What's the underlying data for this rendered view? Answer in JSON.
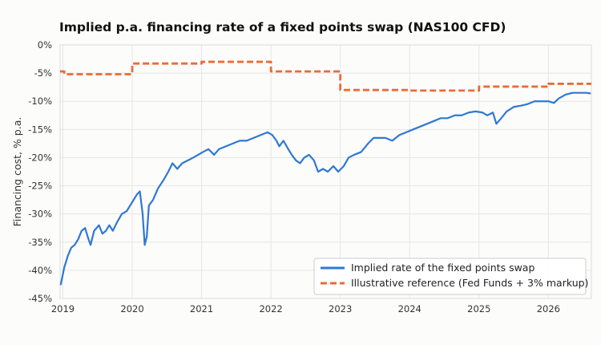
{
  "chart_data": {
    "type": "line",
    "title": "Implied p.a. financing rate of a fixed points swap (NAS100 CFD)",
    "xlabel": "",
    "ylabel": "Financing cost, % p.a.",
    "xlim": [
      2018.96,
      2026.62
    ],
    "ylim": [
      -45,
      0
    ],
    "x_ticks": [
      {
        "value": 2019,
        "label": "2019"
      },
      {
        "value": 2020,
        "label": "2020"
      },
      {
        "value": 2021,
        "label": "2021"
      },
      {
        "value": 2022,
        "label": "2022"
      },
      {
        "value": 2023,
        "label": "2023"
      },
      {
        "value": 2024,
        "label": "2024"
      },
      {
        "value": 2025,
        "label": "2025"
      },
      {
        "value": 2026,
        "label": "2026"
      }
    ],
    "y_ticks": [
      {
        "value": 0,
        "label": "0%"
      },
      {
        "value": -5,
        "label": "-5%"
      },
      {
        "value": -10,
        "label": "-10%"
      },
      {
        "value": -15,
        "label": "-15%"
      },
      {
        "value": -20,
        "label": "-20%"
      },
      {
        "value": -25,
        "label": "-25%"
      },
      {
        "value": -30,
        "label": "-30%"
      },
      {
        "value": -35,
        "label": "-35%"
      },
      {
        "value": -40,
        "label": "-40%"
      },
      {
        "value": -45,
        "label": "-45%"
      }
    ],
    "grid": true,
    "legend_position": "bottom-right",
    "series": [
      {
        "name": "Implied rate of the fixed points swap",
        "color": "#2f78d2",
        "style": "solid",
        "points": [
          [
            2018.97,
            -42.5
          ],
          [
            2019.02,
            -39.5
          ],
          [
            2019.07,
            -37.5
          ],
          [
            2019.12,
            -36.0
          ],
          [
            2019.17,
            -35.5
          ],
          [
            2019.22,
            -34.5
          ],
          [
            2019.27,
            -33.0
          ],
          [
            2019.32,
            -32.5
          ],
          [
            2019.37,
            -34.5
          ],
          [
            2019.4,
            -35.5
          ],
          [
            2019.45,
            -33.0
          ],
          [
            2019.52,
            -32.0
          ],
          [
            2019.57,
            -33.5
          ],
          [
            2019.62,
            -33.0
          ],
          [
            2019.67,
            -32.0
          ],
          [
            2019.72,
            -33.0
          ],
          [
            2019.78,
            -31.5
          ],
          [
            2019.85,
            -30.0
          ],
          [
            2019.92,
            -29.5
          ],
          [
            2019.97,
            -28.5
          ],
          [
            2020.02,
            -27.5
          ],
          [
            2020.07,
            -26.5
          ],
          [
            2020.11,
            -26.0
          ],
          [
            2020.15,
            -30.0
          ],
          [
            2020.18,
            -35.5
          ],
          [
            2020.21,
            -34.0
          ],
          [
            2020.24,
            -28.5
          ],
          [
            2020.3,
            -27.5
          ],
          [
            2020.37,
            -25.5
          ],
          [
            2020.45,
            -24.0
          ],
          [
            2020.52,
            -22.5
          ],
          [
            2020.58,
            -21.0
          ],
          [
            2020.65,
            -22.0
          ],
          [
            2020.72,
            -21.0
          ],
          [
            2020.8,
            -20.5
          ],
          [
            2020.88,
            -20.0
          ],
          [
            2020.95,
            -19.5
          ],
          [
            2021.02,
            -19.0
          ],
          [
            2021.1,
            -18.5
          ],
          [
            2021.18,
            -19.5
          ],
          [
            2021.25,
            -18.5
          ],
          [
            2021.35,
            -18.0
          ],
          [
            2021.45,
            -17.5
          ],
          [
            2021.55,
            -17.0
          ],
          [
            2021.65,
            -17.0
          ],
          [
            2021.75,
            -16.5
          ],
          [
            2021.85,
            -16.0
          ],
          [
            2021.95,
            -15.5
          ],
          [
            2022.02,
            -16.0
          ],
          [
            2022.08,
            -17.0
          ],
          [
            2022.12,
            -18.0
          ],
          [
            2022.18,
            -17.0
          ],
          [
            2022.25,
            -18.5
          ],
          [
            2022.3,
            -19.5
          ],
          [
            2022.36,
            -20.5
          ],
          [
            2022.42,
            -21.0
          ],
          [
            2022.48,
            -20.0
          ],
          [
            2022.55,
            -19.5
          ],
          [
            2022.62,
            -20.5
          ],
          [
            2022.68,
            -22.5
          ],
          [
            2022.75,
            -22.0
          ],
          [
            2022.82,
            -22.5
          ],
          [
            2022.9,
            -21.5
          ],
          [
            2022.97,
            -22.5
          ],
          [
            2023.05,
            -21.5
          ],
          [
            2023.12,
            -20.0
          ],
          [
            2023.2,
            -19.5
          ],
          [
            2023.3,
            -19.0
          ],
          [
            2023.4,
            -17.5
          ],
          [
            2023.48,
            -16.5
          ],
          [
            2023.55,
            -16.5
          ],
          [
            2023.65,
            -16.5
          ],
          [
            2023.75,
            -17.0
          ],
          [
            2023.85,
            -16.0
          ],
          [
            2023.95,
            -15.5
          ],
          [
            2024.05,
            -15.0
          ],
          [
            2024.15,
            -14.5
          ],
          [
            2024.25,
            -14.0
          ],
          [
            2024.35,
            -13.5
          ],
          [
            2024.45,
            -13.0
          ],
          [
            2024.55,
            -13.0
          ],
          [
            2024.65,
            -12.5
          ],
          [
            2024.75,
            -12.5
          ],
          [
            2024.85,
            -12.0
          ],
          [
            2024.95,
            -11.8
          ],
          [
            2025.05,
            -12.0
          ],
          [
            2025.12,
            -12.5
          ],
          [
            2025.2,
            -12.0
          ],
          [
            2025.25,
            -14.0
          ],
          [
            2025.32,
            -13.0
          ],
          [
            2025.4,
            -11.8
          ],
          [
            2025.5,
            -11.0
          ],
          [
            2025.6,
            -10.8
          ],
          [
            2025.7,
            -10.5
          ],
          [
            2025.8,
            -10.0
          ],
          [
            2025.9,
            -10.0
          ],
          [
            2026.0,
            -10.0
          ],
          [
            2026.08,
            -10.3
          ],
          [
            2026.15,
            -9.5
          ],
          [
            2026.25,
            -8.8
          ],
          [
            2026.35,
            -8.5
          ],
          [
            2026.45,
            -8.5
          ],
          [
            2026.55,
            -8.5
          ],
          [
            2026.6,
            -8.6
          ]
        ]
      },
      {
        "name": "Illustrative reference (Fed Funds + 3% markup)",
        "color": "#ec6b35",
        "style": "dashed",
        "points": [
          [
            2018.96,
            -4.7
          ],
          [
            2019.02,
            -4.7
          ],
          [
            2019.02,
            -5.2
          ],
          [
            2020.0,
            -5.2
          ],
          [
            2020.0,
            -3.3
          ],
          [
            2021.0,
            -3.3
          ],
          [
            2021.0,
            -3.0
          ],
          [
            2022.0,
            -3.0
          ],
          [
            2022.0,
            -4.7
          ],
          [
            2023.0,
            -4.7
          ],
          [
            2023.0,
            -8.0
          ],
          [
            2024.0,
            -8.0
          ],
          [
            2024.0,
            -8.1
          ],
          [
            2025.0,
            -8.1
          ],
          [
            2025.0,
            -7.4
          ],
          [
            2026.0,
            -7.4
          ],
          [
            2026.0,
            -6.9
          ],
          [
            2026.62,
            -6.9
          ]
        ]
      }
    ]
  }
}
